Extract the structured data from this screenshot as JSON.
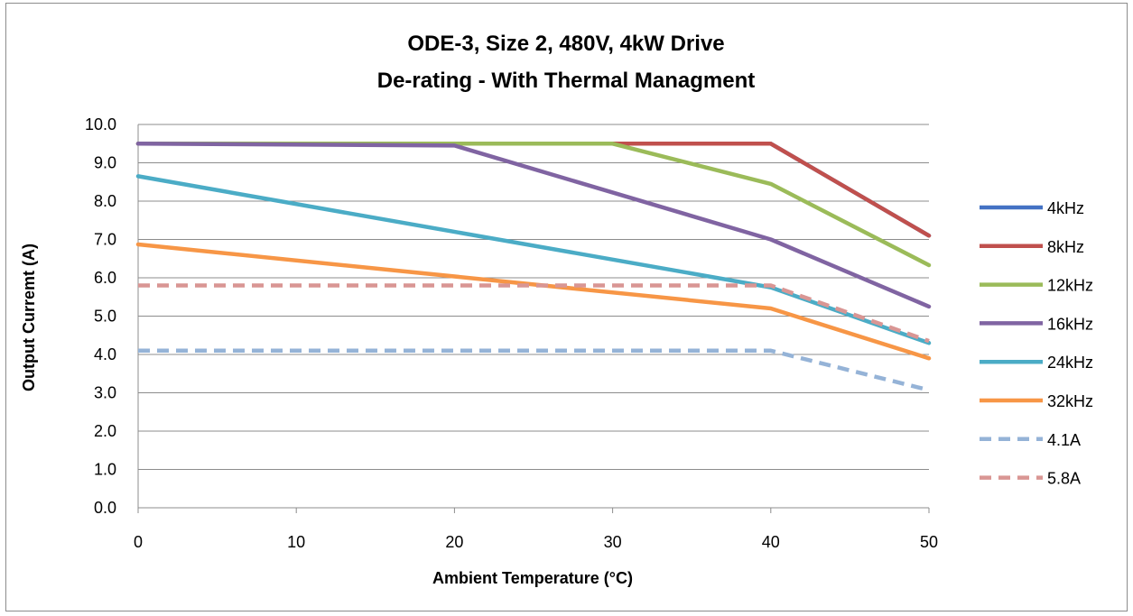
{
  "chart_data": {
    "type": "line",
    "title": [
      "ODE-3, Size 2, 480V, 4kW Drive",
      "De-rating - With Thermal Managment"
    ],
    "xlabel": "Ambient Temperature (°C)",
    "ylabel": "Output Curremt (A)",
    "xlim": [
      0,
      50
    ],
    "ylim": [
      0,
      10
    ],
    "x_ticks": [
      "0",
      "10",
      "20",
      "30",
      "40",
      "50"
    ],
    "y_ticks": [
      "0.0",
      "1.0",
      "2.0",
      "3.0",
      "4.0",
      "5.0",
      "6.0",
      "7.0",
      "8.0",
      "9.0",
      "10.0"
    ],
    "grid": "horizontal",
    "legend_position": "right",
    "series": [
      {
        "name": "4kHz",
        "color": "#4472C4",
        "dash": false,
        "points": [
          [
            0,
            9.5
          ],
          [
            40,
            9.5
          ],
          [
            50,
            7.1
          ]
        ]
      },
      {
        "name": "8kHz",
        "color": "#C0504D",
        "dash": false,
        "points": [
          [
            0,
            9.5
          ],
          [
            40,
            9.5
          ],
          [
            50,
            7.1
          ]
        ]
      },
      {
        "name": "12kHz",
        "color": "#9BBB59",
        "dash": false,
        "points": [
          [
            0,
            9.5
          ],
          [
            30,
            9.5
          ],
          [
            40,
            8.45
          ],
          [
            50,
            6.33
          ]
        ]
      },
      {
        "name": "16kHz",
        "color": "#8064A2",
        "dash": false,
        "points": [
          [
            0,
            9.5
          ],
          [
            20,
            9.45
          ],
          [
            40,
            7.0
          ],
          [
            50,
            5.25
          ]
        ]
      },
      {
        "name": "24kHz",
        "color": "#4BACC6",
        "dash": false,
        "points": [
          [
            0,
            8.65
          ],
          [
            40,
            5.75
          ],
          [
            50,
            4.3
          ]
        ]
      },
      {
        "name": "32kHz",
        "color": "#F79646",
        "dash": false,
        "points": [
          [
            0,
            6.87
          ],
          [
            40,
            5.2
          ],
          [
            50,
            3.9
          ]
        ]
      },
      {
        "name": "4.1A",
        "color": "#95B3D7",
        "dash": true,
        "points": [
          [
            0,
            4.1
          ],
          [
            40,
            4.1
          ],
          [
            50,
            3.07
          ]
        ]
      },
      {
        "name": "5.8A",
        "color": "#D99694",
        "dash": true,
        "points": [
          [
            0,
            5.8
          ],
          [
            40,
            5.8
          ],
          [
            50,
            4.35
          ]
        ]
      }
    ]
  }
}
